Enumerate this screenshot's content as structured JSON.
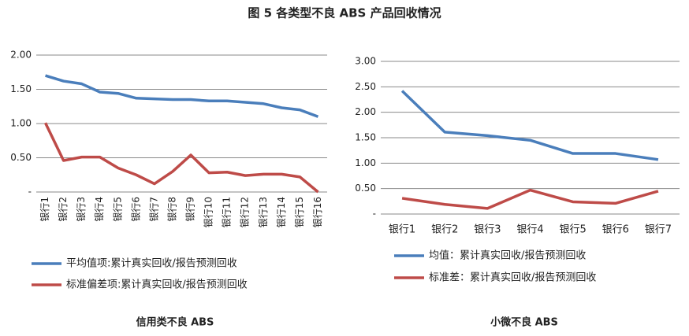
{
  "title": "图 5  各类型不良 ABS 产品回收情况",
  "chart_data": [
    {
      "type": "line",
      "title": "信用类不良 ABS",
      "categories": [
        "银行1",
        "银行2",
        "银行3",
        "银行4",
        "银行5",
        "银行6",
        "银行7",
        "银行8",
        "银行9",
        "银行10",
        "银行11",
        "银行12",
        "银行13",
        "银行14",
        "银行15",
        "银行16"
      ],
      "series": [
        {
          "name": "平均值项:累计真实回收/报告预测回收",
          "color": "#4a7ebb",
          "values": [
            1.7,
            1.62,
            1.58,
            1.46,
            1.44,
            1.37,
            1.36,
            1.35,
            1.35,
            1.33,
            1.33,
            1.31,
            1.29,
            1.23,
            1.2,
            1.1
          ]
        },
        {
          "name": "标准偏差项:累计真实回收/报告预测回收",
          "color": "#be4b48",
          "values": [
            1.01,
            0.46,
            0.51,
            0.51,
            0.35,
            0.25,
            0.12,
            0.3,
            0.54,
            0.28,
            0.29,
            0.24,
            0.26,
            0.26,
            0.22,
            0.0
          ]
        }
      ],
      "ylim": [
        0,
        2
      ],
      "yticks": [
        {
          "value": 0,
          "label": "-"
        },
        {
          "value": 0.5,
          "label": "0.50"
        },
        {
          "value": 1,
          "label": "1.00"
        },
        {
          "value": 1.5,
          "label": "1.50"
        },
        {
          "value": 2,
          "label": "2.00"
        }
      ],
      "grid": true
    },
    {
      "type": "line",
      "title": "小微不良 ABS",
      "categories": [
        "银行1",
        "银行2",
        "银行3",
        "银行4",
        "银行5",
        "银行6",
        "银行7"
      ],
      "series": [
        {
          "name": "均值：累计真实回收/报告预测回收",
          "color": "#4a7ebb",
          "values": [
            2.42,
            1.61,
            1.54,
            1.45,
            1.19,
            1.19,
            1.07
          ]
        },
        {
          "name": "标准差：累计真实回收/报告预测回收",
          "color": "#be4b48",
          "values": [
            0.31,
            0.19,
            0.11,
            0.47,
            0.24,
            0.21,
            0.45
          ]
        }
      ],
      "ylim": [
        0,
        3
      ],
      "yticks": [
        {
          "value": 0,
          "label": "-"
        },
        {
          "value": 0.5,
          "label": "0.50"
        },
        {
          "value": 1,
          "label": "1.00"
        },
        {
          "value": 1.5,
          "label": "1.50"
        },
        {
          "value": 2,
          "label": "2.00"
        },
        {
          "value": 2.5,
          "label": "2.50"
        },
        {
          "value": 3,
          "label": "3.00"
        }
      ],
      "grid": true
    }
  ]
}
